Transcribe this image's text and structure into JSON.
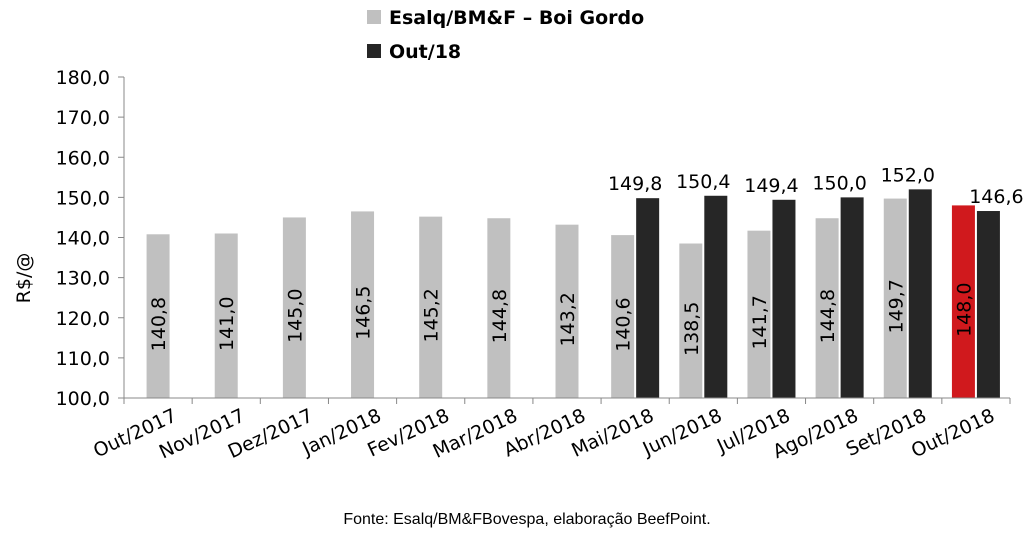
{
  "chart_data": {
    "type": "bar",
    "ylabel": "R$/@",
    "ylim": [
      100,
      180
    ],
    "yticks": [
      "100,0",
      "110,0",
      "120,0",
      "130,0",
      "140,0",
      "150,0",
      "160,0",
      "170,0",
      "180,0"
    ],
    "categories": [
      "Out/2017",
      "Nov/2017",
      "Dez/2017",
      "Jan/2018",
      "Fev/2018",
      "Mar/2018",
      "Abr/2018",
      "Mai/2018",
      "Jun/2018",
      "Jul/2018",
      "Ago/2018",
      "Set/2018",
      "Out/2018"
    ],
    "series": [
      {
        "name": "Esalq/BM&F – Boi Gordo",
        "color": "#c0c0c0",
        "values": [
          140.8,
          141.0,
          145.0,
          146.5,
          145.2,
          144.8,
          143.2,
          140.6,
          138.5,
          141.7,
          144.8,
          149.7,
          148.0
        ],
        "labels": [
          "140,8",
          "141,0",
          "145,0",
          "146,5",
          "145,2",
          "144,8",
          "143,2",
          "140,6",
          "138,5",
          "141,7",
          "144,8",
          "149,7",
          "148,0"
        ]
      },
      {
        "name": "Out/18",
        "color": "#262626",
        "values": [
          null,
          null,
          null,
          null,
          null,
          null,
          null,
          149.8,
          150.4,
          149.4,
          150.0,
          152.0,
          146.6
        ],
        "labels": [
          null,
          null,
          null,
          null,
          null,
          null,
          null,
          "149,8",
          "150,4",
          "149,4",
          "150,0",
          "152,0",
          "146,6"
        ]
      }
    ],
    "highlight": {
      "category_index": 12,
      "series_index": 0,
      "color": "#d0191d"
    },
    "legend_position": "top",
    "grid": false
  },
  "source": "Fonte: Esalq/BM&FBovespa, elaboração BeefPoint."
}
